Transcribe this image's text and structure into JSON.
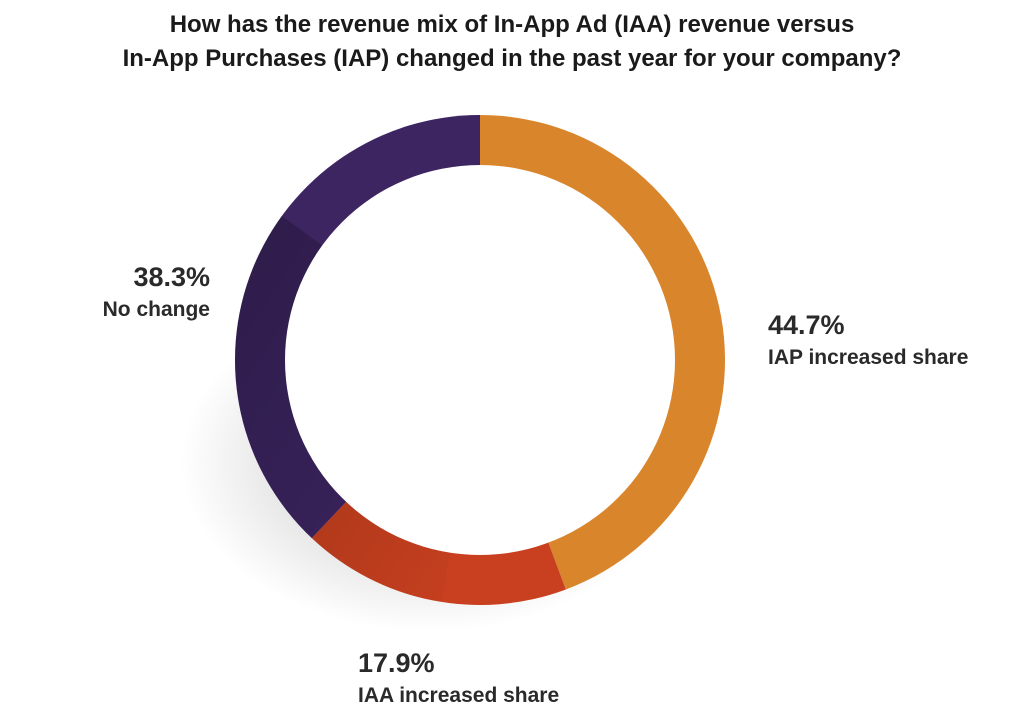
{
  "chart_data": {
    "type": "pie",
    "title_lines": [
      "How has the revenue mix of In-App Ad (IAA) revenue versus",
      "In-App Purchases (IAP) changed in the past year for your company?"
    ],
    "slices": [
      {
        "label": "IAP increased share",
        "value": 44.7,
        "value_label": "44.7%",
        "color": "#d9852b"
      },
      {
        "label": "IAA increased share",
        "value": 17.9,
        "value_label": "17.9%",
        "color": "#c8401f"
      },
      {
        "label": "No change",
        "value": 38.3,
        "value_label": "38.3%",
        "color": "#3d2562"
      }
    ],
    "donut": true,
    "start_angle": "12 o'clock",
    "direction": "clockwise",
    "legend": "none (direct labels)"
  }
}
